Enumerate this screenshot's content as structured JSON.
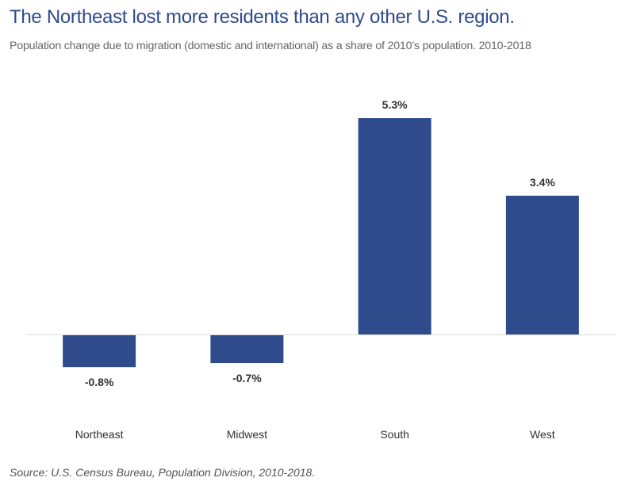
{
  "chart_data": {
    "type": "bar",
    "title": "The Northeast lost more residents than any other U.S. region.",
    "subtitle": "Population change due to migration (domestic and international) as a share of 2010’s population. 2010-2018",
    "categories": [
      "Northeast",
      "Midwest",
      "South",
      "West"
    ],
    "values": [
      -0.8,
      -0.7,
      5.3,
      3.4
    ],
    "data_labels": [
      "-0.8%",
      "-0.7%",
      "5.3%",
      "3.4%"
    ],
    "xlabel": "",
    "ylabel": "",
    "unit": "%",
    "grid": false,
    "bar_color": "#2f4b8c",
    "title_color": "#2f4a8c",
    "source": "Source: U.S. Census Bureau, Population Division, 2010-2018."
  }
}
